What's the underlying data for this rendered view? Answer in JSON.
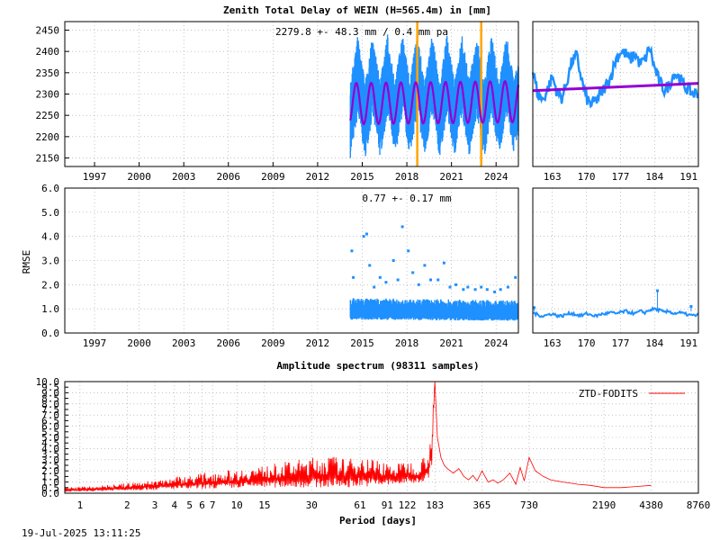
{
  "colors": {
    "ztd": "#1e90ff",
    "model": "#9400d3",
    "event": "#ffa500",
    "spectrum": "#ff0000"
  },
  "footer": {
    "timestamp": "19-Jul-2025 13:11:25"
  },
  "chart_data": [
    {
      "id": "ztd-long",
      "type": "scatter",
      "title": "Zenith Total Delay of WEIN (H=565.4m) in [mm]",
      "annotation": "2279.8 +-  48.3 mm /  0.4 mm pa",
      "xlim": [
        1995,
        2025.5
      ],
      "ylim": [
        2130,
        2470
      ],
      "xticks": [
        1997,
        2000,
        2003,
        2006,
        2009,
        2012,
        2015,
        2018,
        2021,
        2024
      ],
      "yticks": [
        2150,
        2200,
        2250,
        2300,
        2350,
        2400,
        2450
      ],
      "data_start": 2014.2,
      "data_end": 2025.5,
      "mean": 2279.8,
      "seasonal_amplitude": 48.3,
      "trend_per_year": 0.4,
      "series": [
        {
          "role": "ztd-observations",
          "envelope": {
            "x": [
              2014.2,
              2014.7,
              2015.2,
              2015.7,
              2016.2,
              2016.7,
              2017.2,
              2017.7,
              2018.2,
              2018.7,
              2019.2,
              2019.7,
              2020.2,
              2020.7,
              2021.2,
              2021.7,
              2022.2,
              2022.7,
              2023.2,
              2023.7,
              2024.2,
              2024.7,
              2025.2,
              2025.5
            ],
            "low": [
              2150,
              2245,
              2150,
              2245,
              2150,
              2248,
              2150,
              2250,
              2155,
              2252,
              2150,
              2250,
              2150,
              2250,
              2150,
              2252,
              2155,
              2250,
              2150,
              2250,
              2155,
              2252,
              2160,
              2200
            ],
            "high": [
              2330,
              2440,
              2330,
              2440,
              2330,
              2440,
              2330,
              2440,
              2335,
              2445,
              2330,
              2440,
              2330,
              2440,
              2330,
              2440,
              2335,
              2440,
              2330,
              2440,
              2330,
              2440,
              2335,
              2380
            ]
          }
        },
        {
          "role": "seasonal-model",
          "mean": 2279.8,
          "amplitude": 48.3,
          "trend": 0.4
        }
      ],
      "event_lines": [
        2018.7,
        2023.0
      ]
    },
    {
      "id": "ztd-recent",
      "type": "line",
      "xlim": [
        159,
        193
      ],
      "ylim": [
        2130,
        2470
      ],
      "xticks": [
        163,
        170,
        177,
        184,
        191
      ],
      "series": [
        {
          "role": "ztd-observations",
          "x": [
            159,
            160,
            161,
            162,
            163,
            164,
            165,
            166,
            167,
            168,
            169,
            170,
            171,
            172,
            173,
            174,
            175,
            176,
            177,
            178,
            179,
            180,
            181,
            182,
            183,
            184,
            185,
            186,
            187,
            188,
            189,
            190,
            191,
            192,
            193
          ],
          "y": [
            2355,
            2300,
            2285,
            2310,
            2340,
            2305,
            2290,
            2330,
            2375,
            2390,
            2335,
            2290,
            2275,
            2285,
            2300,
            2320,
            2340,
            2380,
            2400,
            2395,
            2380,
            2395,
            2370,
            2380,
            2410,
            2360,
            2330,
            2310,
            2320,
            2350,
            2340,
            2320,
            2310,
            2300,
            2305
          ]
        },
        {
          "role": "model",
          "x": [
            159,
            193
          ],
          "y": [
            2308,
            2325
          ]
        }
      ]
    },
    {
      "id": "rmse-long",
      "type": "scatter",
      "ylabel": "RMSE",
      "annotation": "0.77 +-  0.17 mm",
      "xlim": [
        1995,
        2025.5
      ],
      "ylim": [
        0,
        6
      ],
      "xticks": [
        1997,
        2000,
        2003,
        2006,
        2009,
        2012,
        2015,
        2018,
        2021,
        2024
      ],
      "yticks": [
        0.0,
        1.0,
        2.0,
        3.0,
        4.0,
        5.0,
        6.0
      ],
      "series": [
        {
          "role": "rmse",
          "band": {
            "x": [
              2014.2,
              2025.5
            ],
            "low": [
              0.55,
              0.5
            ],
            "high": [
              1.45,
              1.35
            ]
          },
          "outliers": [
            [
              2014.3,
              3.4
            ],
            [
              2014.4,
              2.3
            ],
            [
              2015.1,
              4.0
            ],
            [
              2015.3,
              4.1
            ],
            [
              2015.5,
              2.8
            ],
            [
              2015.8,
              1.9
            ],
            [
              2016.2,
              2.3
            ],
            [
              2016.6,
              2.1
            ],
            [
              2017.1,
              3.0
            ],
            [
              2017.4,
              2.2
            ],
            [
              2017.7,
              4.4
            ],
            [
              2018.1,
              3.4
            ],
            [
              2018.4,
              2.5
            ],
            [
              2018.8,
              2.0
            ],
            [
              2019.2,
              2.8
            ],
            [
              2019.6,
              2.2
            ],
            [
              2020.1,
              2.2
            ],
            [
              2020.5,
              2.9
            ],
            [
              2020.9,
              1.9
            ],
            [
              2021.3,
              2.0
            ],
            [
              2021.8,
              1.8
            ],
            [
              2022.1,
              1.9
            ],
            [
              2022.6,
              1.8
            ],
            [
              2023.0,
              1.9
            ],
            [
              2023.4,
              1.8
            ],
            [
              2023.9,
              1.7
            ],
            [
              2024.3,
              1.8
            ],
            [
              2024.8,
              1.9
            ],
            [
              2025.3,
              2.3
            ]
          ]
        }
      ]
    },
    {
      "id": "rmse-recent",
      "type": "line",
      "xlim": [
        159,
        193
      ],
      "ylim": [
        0,
        6
      ],
      "xticks": [
        163,
        170,
        177,
        184,
        191
      ],
      "series": [
        {
          "role": "rmse",
          "x": [
            159,
            160,
            161,
            162,
            163,
            164,
            165,
            166,
            167,
            168,
            169,
            170,
            171,
            172,
            173,
            174,
            175,
            176,
            177,
            178,
            179,
            180,
            181,
            182,
            183,
            184,
            185,
            186,
            187,
            188,
            189,
            190,
            191,
            192,
            193
          ],
          "y": [
            0.85,
            0.75,
            0.7,
            0.75,
            0.8,
            0.72,
            0.7,
            0.78,
            0.82,
            0.75,
            0.72,
            0.8,
            0.75,
            0.7,
            0.78,
            0.8,
            0.85,
            0.8,
            0.85,
            0.9,
            0.85,
            0.8,
            0.9,
            0.85,
            0.95,
            1.0,
            0.95,
            0.85,
            0.9,
            0.8,
            0.85,
            0.8,
            0.75,
            0.72,
            0.75
          ],
          "outliers": [
            [
              159.3,
              1.05
            ],
            [
              184.6,
              1.75
            ],
            [
              191.5,
              1.1
            ]
          ]
        }
      ]
    },
    {
      "id": "spectrum",
      "type": "line",
      "title": "Amplitude spectrum (98311 samples)",
      "xlabel": "Period [days]",
      "x_scale": "log",
      "xlim": [
        0.8,
        8760
      ],
      "ylim": [
        0,
        10
      ],
      "xticks": [
        1,
        2,
        3,
        4,
        5,
        6,
        7,
        10,
        15,
        30,
        61,
        91,
        122,
        183,
        365,
        730,
        2190,
        4380,
        8760
      ],
      "yticks": [
        0.0,
        0.5,
        1.0,
        1.5,
        2.0,
        2.5,
        3.0,
        3.5,
        4.0,
        4.5,
        5.0,
        5.5,
        6.0,
        6.5,
        7.0,
        7.5,
        8.0,
        8.5,
        9.0,
        9.5,
        10.0
      ],
      "series": [
        {
          "name": "ZTD-FODITS",
          "envelope": {
            "x": [
              0.8,
              1,
              2,
              3,
              4,
              5,
              7,
              10,
              15,
              20,
              30,
              40,
              50,
              60,
              70,
              80,
              90,
              100,
              120,
              140,
              160,
              170,
              175,
              183
            ],
            "low": [
              0.1,
              0.15,
              0.25,
              0.3,
              0.35,
              0.35,
              0.4,
              0.45,
              0.5,
              0.5,
              0.5,
              0.5,
              0.5,
              0.6,
              0.6,
              0.6,
              0.7,
              0.7,
              0.8,
              0.9,
              1.0,
              1.5,
              2.5,
              10.0
            ],
            "high": [
              0.5,
              0.6,
              0.9,
              1.2,
              1.5,
              1.6,
              2.0,
              2.1,
              2.5,
              2.8,
              3.2,
              3.4,
              3.0,
              3.4,
              3.2,
              3.0,
              2.8,
              2.5,
              3.0,
              2.6,
              3.6,
              4.5,
              7.0,
              10.0
            ]
          },
          "x": [
            183,
            190,
            200,
            210,
            220,
            240,
            260,
            280,
            300,
            320,
            340,
            365,
            400,
            430,
            460,
            500,
            550,
            600,
            640,
            680,
            730,
            800,
            900,
            1000,
            1200,
            1500,
            1800,
            2190,
            2800,
            3500,
            4380
          ],
          "y": [
            10.0,
            5.0,
            3.2,
            2.5,
            2.2,
            1.8,
            2.2,
            1.5,
            1.2,
            1.6,
            1.1,
            2.0,
            1.0,
            1.2,
            0.9,
            1.2,
            1.8,
            0.8,
            2.3,
            1.1,
            3.2,
            2.0,
            1.5,
            1.2,
            1.0,
            0.8,
            0.7,
            0.5,
            0.5,
            0.6,
            0.7
          ]
        }
      ]
    }
  ]
}
